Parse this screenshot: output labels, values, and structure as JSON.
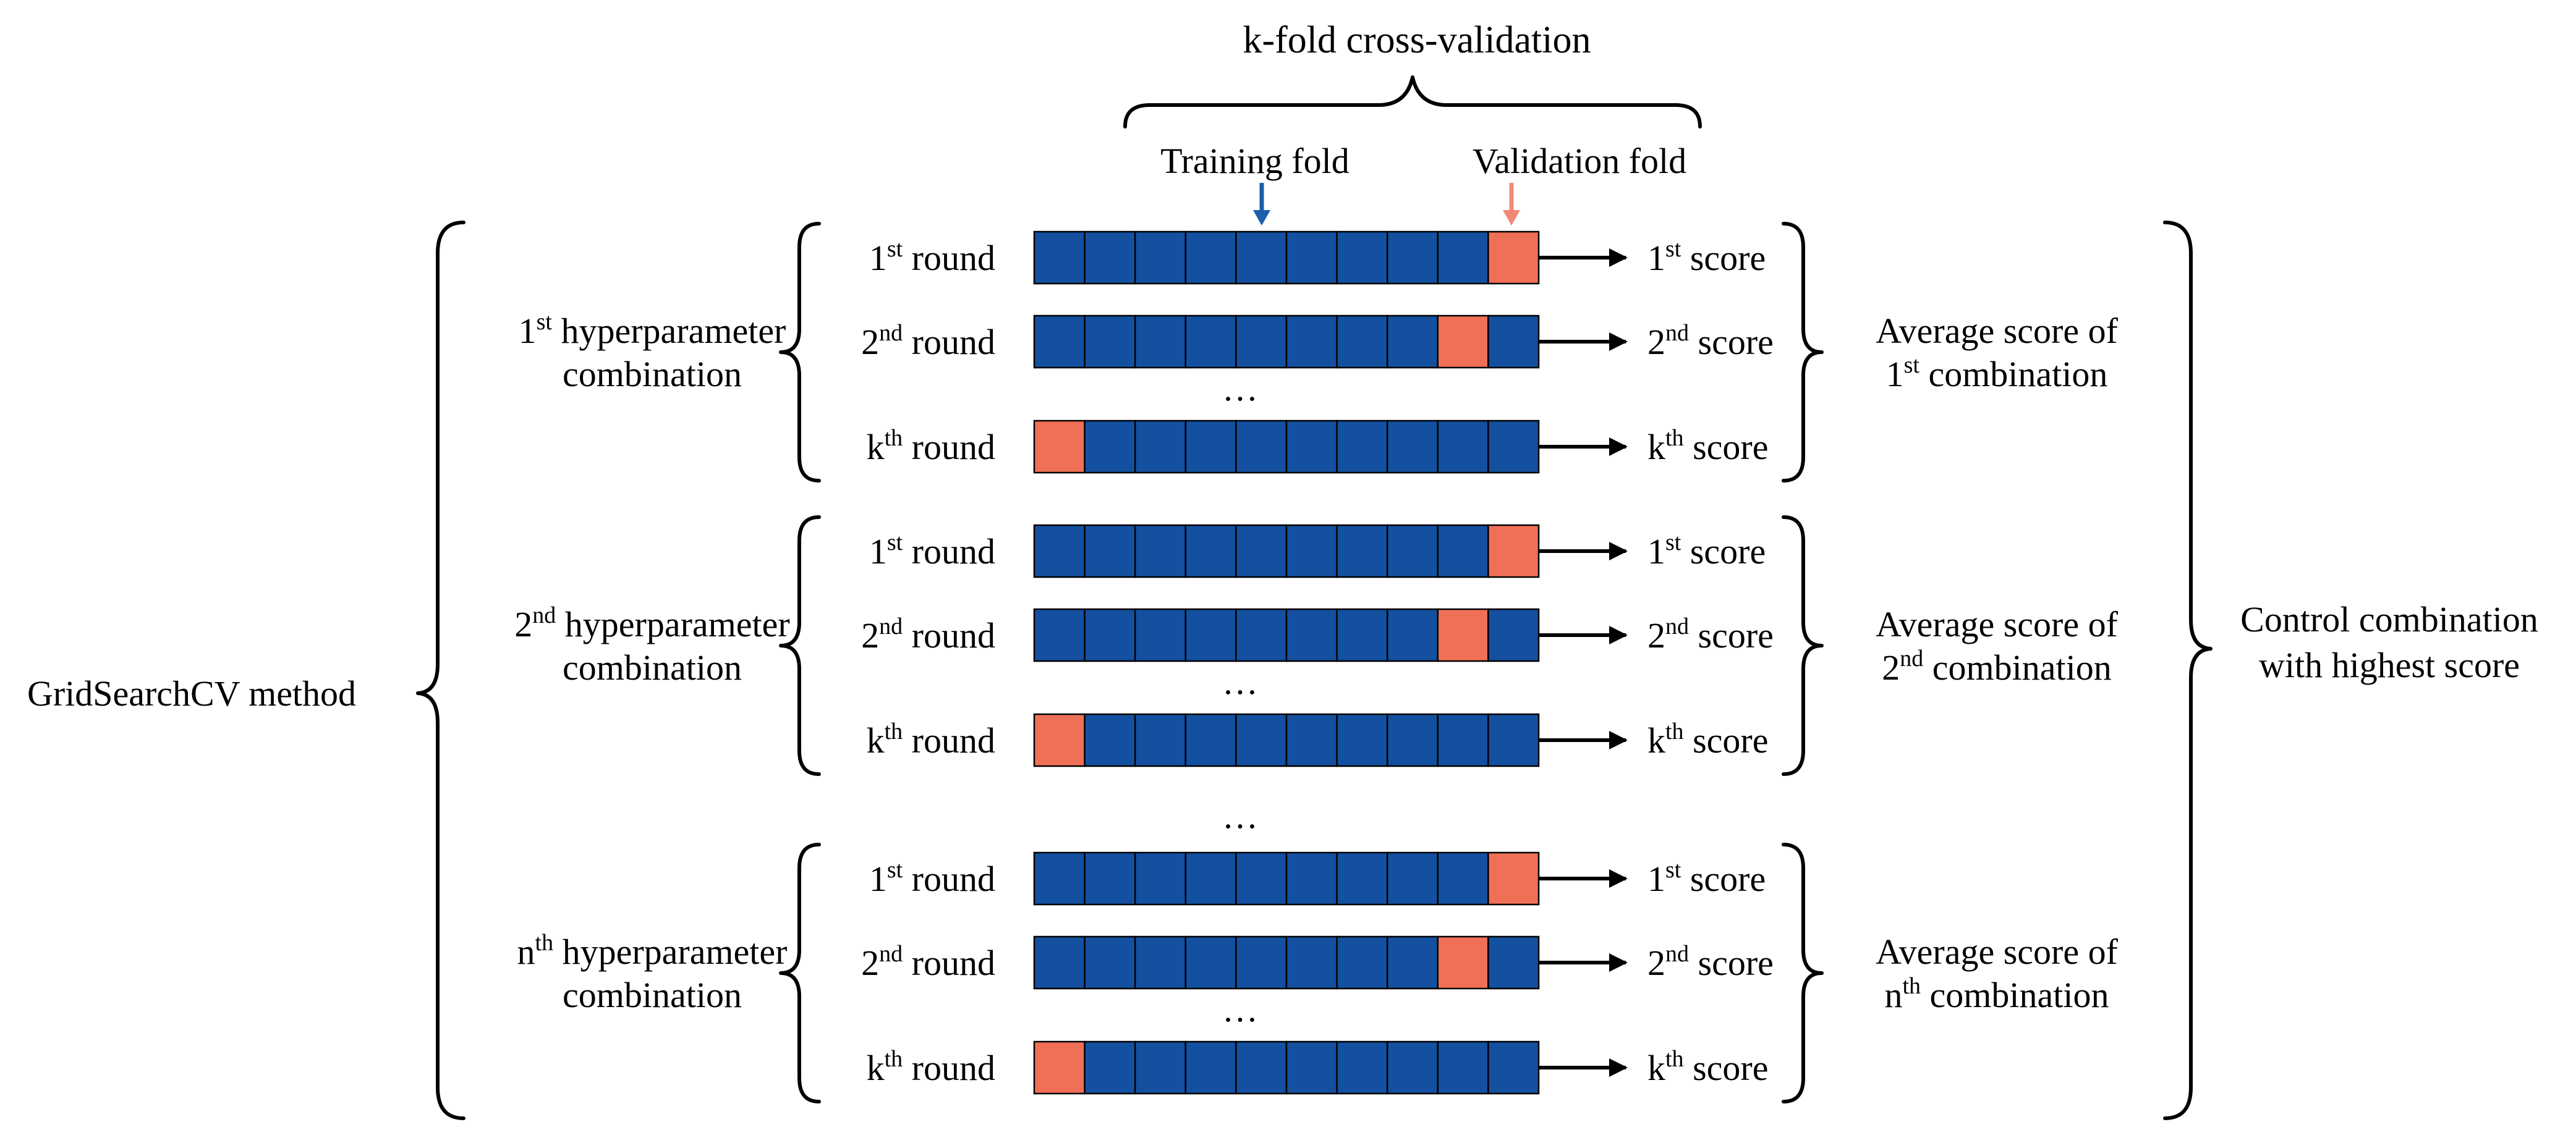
{
  "title": "k-fold cross-validation",
  "legend": {
    "training_label": "Training fold",
    "validation_label": "Validation fold"
  },
  "colors": {
    "training": "#1450a0",
    "validation": "#f07057",
    "training_pointer": "#1a5fa8",
    "validation_pointer": "#f08a75"
  },
  "method_label": "GridSearchCV method",
  "result_label": [
    "Control combination",
    "with highest score"
  ],
  "fold_count": 10,
  "ellipsis": "…",
  "groups": [
    {
      "hyper_label": {
        "base": "1",
        "sup": "st",
        "rest": " hyperparameter",
        "line2": "combination"
      },
      "avg_label": {
        "line1": "Average score of",
        "base": "1",
        "sup": "st",
        "rest": " combination"
      },
      "rounds": [
        {
          "base": "1",
          "sup": "st",
          "rest": " round",
          "validation_fold": 10,
          "score": {
            "base": "1",
            "sup": "st",
            "rest": " score"
          }
        },
        {
          "base": "2",
          "sup": "nd",
          "rest": " round",
          "validation_fold": 9,
          "score": {
            "base": "2",
            "sup": "nd",
            "rest": " score"
          }
        },
        {
          "base": "k",
          "sup": "th",
          "rest": " round",
          "validation_fold": 1,
          "score": {
            "base": "k",
            "sup": "th",
            "rest": " score"
          }
        }
      ]
    },
    {
      "hyper_label": {
        "base": "2",
        "sup": "nd",
        "rest": " hyperparameter",
        "line2": "combination"
      },
      "avg_label": {
        "line1": "Average score of",
        "base": "2",
        "sup": "nd",
        "rest": " combination"
      },
      "rounds": [
        {
          "base": "1",
          "sup": "st",
          "rest": " round",
          "validation_fold": 10,
          "score": {
            "base": "1",
            "sup": "st",
            "rest": " score"
          }
        },
        {
          "base": "2",
          "sup": "nd",
          "rest": " round",
          "validation_fold": 9,
          "score": {
            "base": "2",
            "sup": "nd",
            "rest": " score"
          }
        },
        {
          "base": "k",
          "sup": "th",
          "rest": " round",
          "validation_fold": 1,
          "score": {
            "base": "k",
            "sup": "th",
            "rest": " score"
          }
        }
      ]
    },
    {
      "hyper_label": {
        "base": "n",
        "sup": "th",
        "rest": " hyperparameter",
        "line2": "combination"
      },
      "avg_label": {
        "line1": "Average score of",
        "base": "n",
        "sup": "th",
        "rest": " combination"
      },
      "rounds": [
        {
          "base": "1",
          "sup": "st",
          "rest": " round",
          "validation_fold": 10,
          "score": {
            "base": "1",
            "sup": "st",
            "rest": " score"
          }
        },
        {
          "base": "2",
          "sup": "nd",
          "rest": " round",
          "validation_fold": 9,
          "score": {
            "base": "2",
            "sup": "nd",
            "rest": " score"
          }
        },
        {
          "base": "k",
          "sup": "th",
          "rest": " round",
          "validation_fold": 1,
          "score": {
            "base": "k",
            "sup": "th",
            "rest": " score"
          }
        }
      ]
    }
  ]
}
